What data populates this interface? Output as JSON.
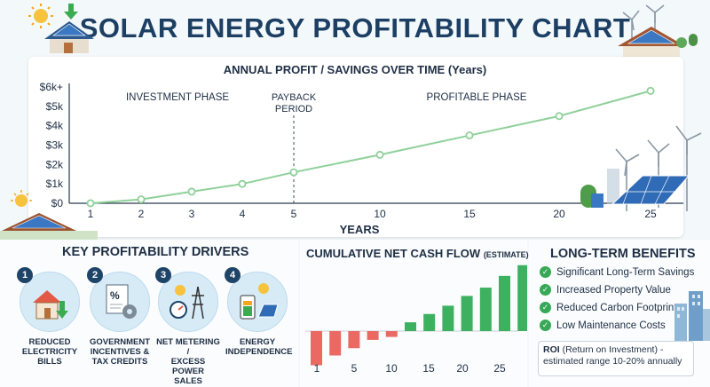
{
  "title": "SOLAR ENERGY PROFITABILITY CHART",
  "chart_data": [
    {
      "type": "line",
      "title": "ANNUAL PROFIT / SAVINGS OVER TIME (Years)",
      "xlabel": "YEARS",
      "ylabel": "",
      "x_ticks": [
        "1",
        "2",
        "3",
        "4",
        "5",
        "10",
        "15",
        "20",
        "25"
      ],
      "y_ticks": [
        "$0",
        "$1k",
        "$2k",
        "$3k",
        "$4k",
        "$5k",
        "$6k+"
      ],
      "ylim": [
        0,
        6000
      ],
      "series": [
        {
          "values": [
            0,
            200,
            600,
            1000,
            1600,
            2500,
            3500,
            4500,
            5800
          ]
        }
      ],
      "color": "#8fd09a",
      "annotations": [
        "INVESTMENT PHASE",
        "PAYBACK PERIOD",
        "PROFITABLE PHASE"
      ],
      "grid": false
    },
    {
      "type": "bar",
      "title": "CUMULATIVE NET CASH FLOW",
      "title_note": "(ESTIMATE)",
      "x_ticks": [
        "1",
        "5",
        "10",
        "15",
        "20",
        "25"
      ],
      "values": [
        -7,
        -5,
        -3.5,
        -1.8,
        -1.2,
        1.8,
        3.5,
        5.2,
        7.2,
        8.9,
        11.3,
        13.5
      ],
      "negative_color": "#ea6a63",
      "positive_color": "#3db15f"
    }
  ],
  "drivers_heading": "KEY PROFITABILITY DRIVERS",
  "drivers": [
    {
      "num": "1",
      "label_lines": [
        "REDUCED",
        "ELECTRICITY",
        "BILLS"
      ],
      "icon": "house-arrow-icon"
    },
    {
      "num": "2",
      "label_lines": [
        "GOVERNMENT",
        "INCENTIVES &",
        "TAX CREDITS"
      ],
      "icon": "document-gear-icon"
    },
    {
      "num": "3",
      "label_lines": [
        "NET METERING /",
        "EXCESS POWER",
        "SALES"
      ],
      "icon": "meter-tower-icon"
    },
    {
      "num": "4",
      "label_lines": [
        "ENERGY",
        "INDEPENDENCE"
      ],
      "icon": "battery-panel-icon"
    }
  ],
  "benefits_heading": "LONG-TERM BENEFITS",
  "benefits": [
    "Significant Long-Term Savings",
    "Increased Property Value",
    "Reduced Carbon Footprint",
    "Low Maintenance Costs"
  ],
  "roi": {
    "bold": "ROI",
    "text": " (Return on Investment) - estimated range 10-20% annually"
  }
}
